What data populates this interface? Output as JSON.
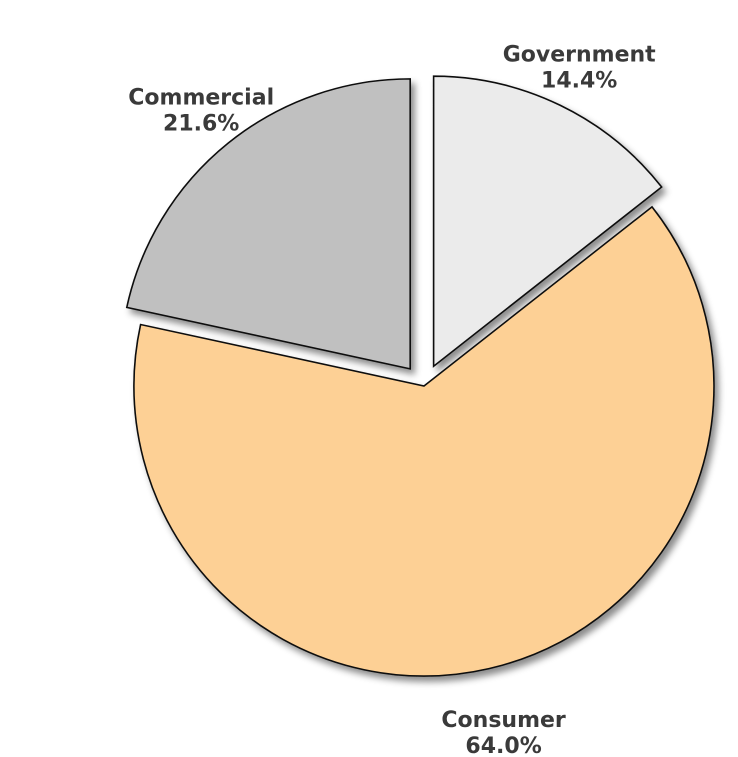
{
  "chart_data": {
    "type": "pie",
    "title": "",
    "slices": [
      {
        "label": "Government",
        "value": 14.4,
        "value_label": "14.4%",
        "color": "#ebebeb",
        "exploded": true
      },
      {
        "label": "Consumer",
        "value": 64.0,
        "value_label": "64.0%",
        "color": "#fdd095",
        "exploded": false
      },
      {
        "label": "Commercial",
        "value": 21.6,
        "value_label": "21.6%",
        "color": "#c0c0c0",
        "exploded": true
      }
    ],
    "start_angle_deg": 0,
    "direction": "clockwise",
    "label_position": "outside",
    "legend": "none"
  }
}
